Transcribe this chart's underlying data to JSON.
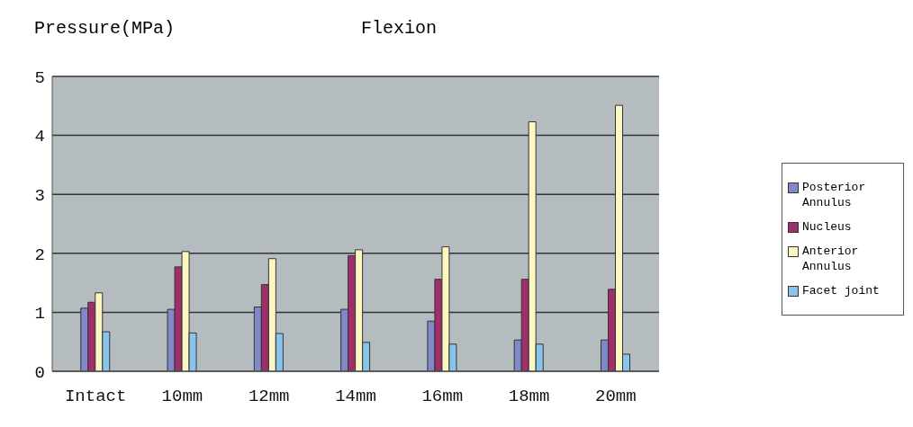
{
  "chart_data": {
    "type": "bar",
    "title": "Flexion",
    "ylabel": "Pressure(MPa)",
    "categories": [
      "Intact",
      "10mm",
      "12mm",
      "14mm",
      "16mm",
      "18mm",
      "20mm"
    ],
    "series": [
      {
        "name": "Posterior Annulus",
        "color": "#8088c8",
        "values": [
          1.07,
          1.05,
          1.09,
          1.05,
          0.85,
          0.53,
          0.53
        ]
      },
      {
        "name": "Nucleus",
        "color": "#9e2f6a",
        "values": [
          1.17,
          1.77,
          1.47,
          1.96,
          1.56,
          1.56,
          1.39
        ]
      },
      {
        "name": "Anterior Annulus",
        "color": "#fcf6c0",
        "values": [
          1.33,
          2.03,
          1.91,
          2.06,
          2.11,
          4.23,
          4.51
        ]
      },
      {
        "name": "Facet joint",
        "color": "#88c4ec",
        "values": [
          0.67,
          0.65,
          0.64,
          0.49,
          0.46,
          0.46,
          0.29
        ]
      }
    ],
    "ylim": [
      0,
      5
    ],
    "yticks": [
      0,
      1,
      2,
      3,
      4,
      5
    ],
    "grid": "y",
    "legend": "right"
  }
}
